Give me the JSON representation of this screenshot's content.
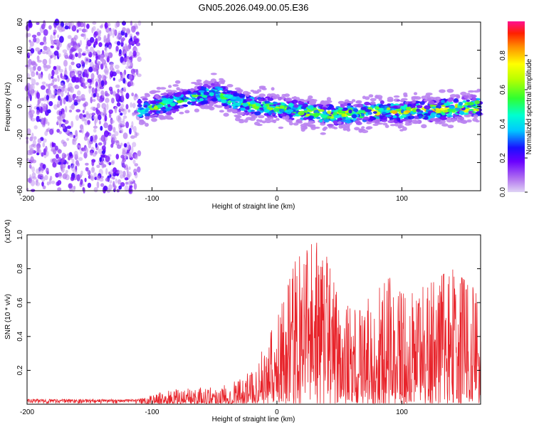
{
  "chart_data": [
    {
      "type": "heatmap",
      "title": "GN05.2026.049.00.05.E36",
      "xlabel": "Height of straight line (km)",
      "ylabel": "Frequency (Hz)",
      "xlim": [
        -200,
        163
      ],
      "ylim": [
        -60,
        60
      ],
      "xticks": [
        -200,
        -100,
        0,
        100
      ],
      "yticks": [
        60,
        40,
        20,
        0,
        -20,
        -40,
        -60
      ],
      "colorbar": {
        "label": "Normalized spectral amplitude",
        "range": [
          0.0,
          1.0
        ],
        "ticks": [
          "0.0",
          "0.2",
          "0.4",
          "0.6",
          "0.8"
        ]
      },
      "regions": [
        {
          "name": "noise",
          "x": [
            -200,
            -110
          ],
          "freq": [
            -60,
            60
          ],
          "amplitude": [
            0.05,
            0.25
          ]
        },
        {
          "name": "signal-band",
          "x": [
            -110,
            163
          ],
          "center_freq": [
            [
              -110,
              -3
            ],
            [
              -50,
              10
            ],
            [
              -30,
              2
            ],
            [
              0,
              -1
            ],
            [
              40,
              -6
            ],
            [
              80,
              -4
            ],
            [
              120,
              -3
            ],
            [
              163,
              0
            ]
          ],
          "half_width_hz": 7,
          "peak_amplitude": 0.95
        }
      ]
    },
    {
      "type": "line",
      "xlabel": "Height of straight line (km)",
      "ylabel": "SNR (10 * v/v)",
      "y_multiplier": "(x10^4)",
      "xlim": [
        -200,
        163
      ],
      "ylim": [
        0,
        1.0
      ],
      "xticks": [
        -200,
        -100,
        0,
        100
      ],
      "yticks": [
        "0.2",
        "0.4",
        "0.6",
        "0.8",
        "1.0"
      ],
      "series": [
        {
          "name": "SNR",
          "color": "#e8232a",
          "envelope_x": [
            -200,
            -110,
            -100,
            -80,
            -60,
            -40,
            -20,
            0,
            15,
            35,
            50,
            70,
            90,
            100,
            120,
            140,
            163
          ],
          "envelope_y": [
            0.03,
            0.03,
            0.06,
            0.09,
            0.1,
            0.12,
            0.2,
            0.5,
            0.85,
            1.0,
            0.6,
            0.6,
            0.75,
            0.65,
            0.7,
            0.8,
            0.65
          ]
        }
      ]
    }
  ]
}
